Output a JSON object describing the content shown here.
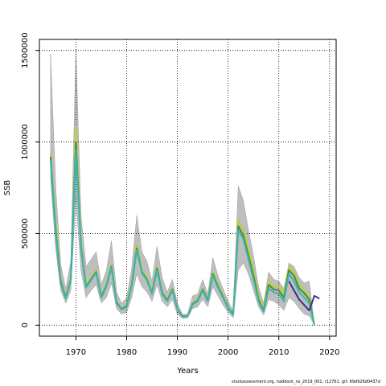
{
  "chart_data": {
    "type": "line",
    "xlabel": "Years",
    "ylabel": "SSB",
    "xlim": [
      1962.8,
      2021.3
    ],
    "ylim": [
      -60000,
      1560000
    ],
    "x_ticks": [
      1970,
      1980,
      1990,
      2000,
      2010,
      2020
    ],
    "y_ticks": [
      0,
      500000,
      1000000,
      1500000
    ],
    "grid": true,
    "series": [
      {
        "color": "#b5d334",
        "x": [
          1965,
          1966,
          1967,
          1968,
          1969,
          1970,
          1971,
          1972,
          1973,
          1974,
          1975,
          1976,
          1977,
          1978,
          1979,
          1980,
          1981,
          1982,
          1983,
          1984,
          1985,
          1986,
          1987,
          1988,
          1989,
          1990,
          1991,
          1992,
          1993,
          1994,
          1995,
          1996,
          1997,
          1998,
          1999,
          2000,
          2001,
          2002,
          2003,
          2004,
          2005,
          2006,
          2007,
          2008,
          2009,
          2010,
          2011,
          2012,
          2013,
          2014,
          2015,
          2016,
          2017
        ],
        "y": [
          940000,
          560000,
          250000,
          150000,
          260000,
          1080000,
          450000,
          220000,
          260000,
          300000,
          160000,
          220000,
          330000,
          130000,
          90000,
          110000,
          230000,
          440000,
          300000,
          260000,
          180000,
          320000,
          180000,
          140000,
          200000,
          90000,
          50000,
          50000,
          120000,
          140000,
          200000,
          140000,
          290000,
          220000,
          160000,
          100000,
          60000,
          570000,
          520000,
          410000,
          300000,
          160000,
          90000,
          240000,
          210000,
          210000,
          170000,
          320000,
          290000,
          220000,
          190000,
          150000,
          0
        ]
      },
      {
        "color": "#4a8a3c",
        "x": [
          1965,
          1966,
          1967,
          1968,
          1969,
          1970,
          1971,
          1972,
          1973,
          1974,
          1975,
          1976,
          1977,
          1978,
          1979,
          1980,
          1981,
          1982,
          1983,
          1984,
          1985,
          1986,
          1987,
          1988,
          1989,
          1990,
          1991,
          1992,
          1993,
          1994,
          1995,
          1996,
          1997,
          1998,
          1999,
          2000,
          2001,
          2002,
          2003,
          2004,
          2005,
          2006,
          2007,
          2008,
          2009,
          2010,
          2011,
          2012,
          2013,
          2014,
          2015,
          2016,
          2017
        ],
        "y": [
          920000,
          520000,
          240000,
          150000,
          250000,
          1000000,
          430000,
          210000,
          250000,
          290000,
          155000,
          215000,
          320000,
          125000,
          88000,
          105000,
          220000,
          420000,
          290000,
          250000,
          175000,
          310000,
          175000,
          135000,
          195000,
          88000,
          48000,
          48000,
          115000,
          135000,
          195000,
          135000,
          280000,
          210000,
          155000,
          95000,
          58000,
          540000,
          490000,
          380000,
          270000,
          140000,
          80000,
          220000,
          195000,
          190000,
          150000,
          300000,
          270000,
          200000,
          175000,
          140000,
          0
        ]
      },
      {
        "color": "#3cb4b4",
        "x": [
          1965,
          1966,
          1967,
          1968,
          1969,
          1970,
          1971,
          1972,
          1973,
          1974,
          1975,
          1976,
          1977,
          1978,
          1979,
          1980,
          1981,
          1982,
          1983,
          1984,
          1985,
          1986,
          1987,
          1988,
          1989,
          1990,
          1991,
          1992,
          1993,
          1994,
          1995,
          1996,
          1997,
          1998,
          1999,
          2000,
          2001,
          2002,
          2003,
          2004,
          2005,
          2006,
          2007,
          2008,
          2009,
          2010,
          2011,
          2012,
          2013,
          2014,
          2015,
          2016,
          2017
        ],
        "y": [
          900000,
          500000,
          230000,
          145000,
          245000,
          960000,
          420000,
          205000,
          245000,
          285000,
          150000,
          210000,
          315000,
          120000,
          85000,
          100000,
          215000,
          410000,
          285000,
          245000,
          170000,
          300000,
          170000,
          130000,
          190000,
          85000,
          46000,
          46000,
          112000,
          130000,
          190000,
          130000,
          270000,
          205000,
          150000,
          92000,
          55000,
          520000,
          470000,
          360000,
          250000,
          130000,
          75000,
          200000,
          180000,
          170000,
          130000,
          280000,
          240000,
          180000,
          150000,
          120000,
          0
        ]
      },
      {
        "color": "#3f2f8c",
        "x": [
          2012,
          2013,
          2014,
          2015,
          2016,
          2017,
          2018
        ],
        "y": [
          240000,
          190000,
          140000,
          110000,
          80000,
          160000,
          145000
        ]
      }
    ],
    "band": {
      "color": "#bebebe",
      "x": [
        1965,
        1966,
        1967,
        1968,
        1969,
        1970,
        1971,
        1972,
        1973,
        1974,
        1975,
        1976,
        1977,
        1978,
        1979,
        1980,
        1981,
        1982,
        1983,
        1984,
        1985,
        1986,
        1987,
        1988,
        1989,
        1990,
        1991,
        1992,
        1993,
        1994,
        1995,
        1996,
        1997,
        1998,
        1999,
        2000,
        2001,
        2002,
        2003,
        2004,
        2005,
        2006,
        2007,
        2008,
        2009,
        2010,
        2011,
        2012,
        2013,
        2014,
        2015,
        2016,
        2017
      ],
      "upper": [
        1480000,
        760000,
        330000,
        200000,
        350000,
        1500000,
        600000,
        320000,
        360000,
        400000,
        220000,
        300000,
        460000,
        180000,
        120000,
        150000,
        310000,
        600000,
        400000,
        350000,
        240000,
        430000,
        260000,
        180000,
        250000,
        120000,
        60000,
        60000,
        160000,
        170000,
        250000,
        170000,
        370000,
        270000,
        200000,
        130000,
        80000,
        760000,
        680000,
        520000,
        380000,
        210000,
        120000,
        290000,
        250000,
        240000,
        200000,
        340000,
        320000,
        260000,
        230000,
        240000,
        0
      ],
      "lower": [
        800000,
        420000,
        190000,
        120000,
        190000,
        700000,
        300000,
        150000,
        190000,
        220000,
        120000,
        150000,
        230000,
        90000,
        60000,
        70000,
        150000,
        280000,
        210000,
        180000,
        130000,
        220000,
        130000,
        100000,
        140000,
        60000,
        38000,
        40000,
        90000,
        100000,
        140000,
        100000,
        210000,
        160000,
        110000,
        70000,
        40000,
        300000,
        340000,
        280000,
        190000,
        100000,
        55000,
        140000,
        130000,
        110000,
        80000,
        150000,
        130000,
        90000,
        60000,
        50000,
        0
      ]
    }
  },
  "footnote": "stockassessment.org, haddock_ns_2019_001, r12761, git: 69d926d0437d"
}
